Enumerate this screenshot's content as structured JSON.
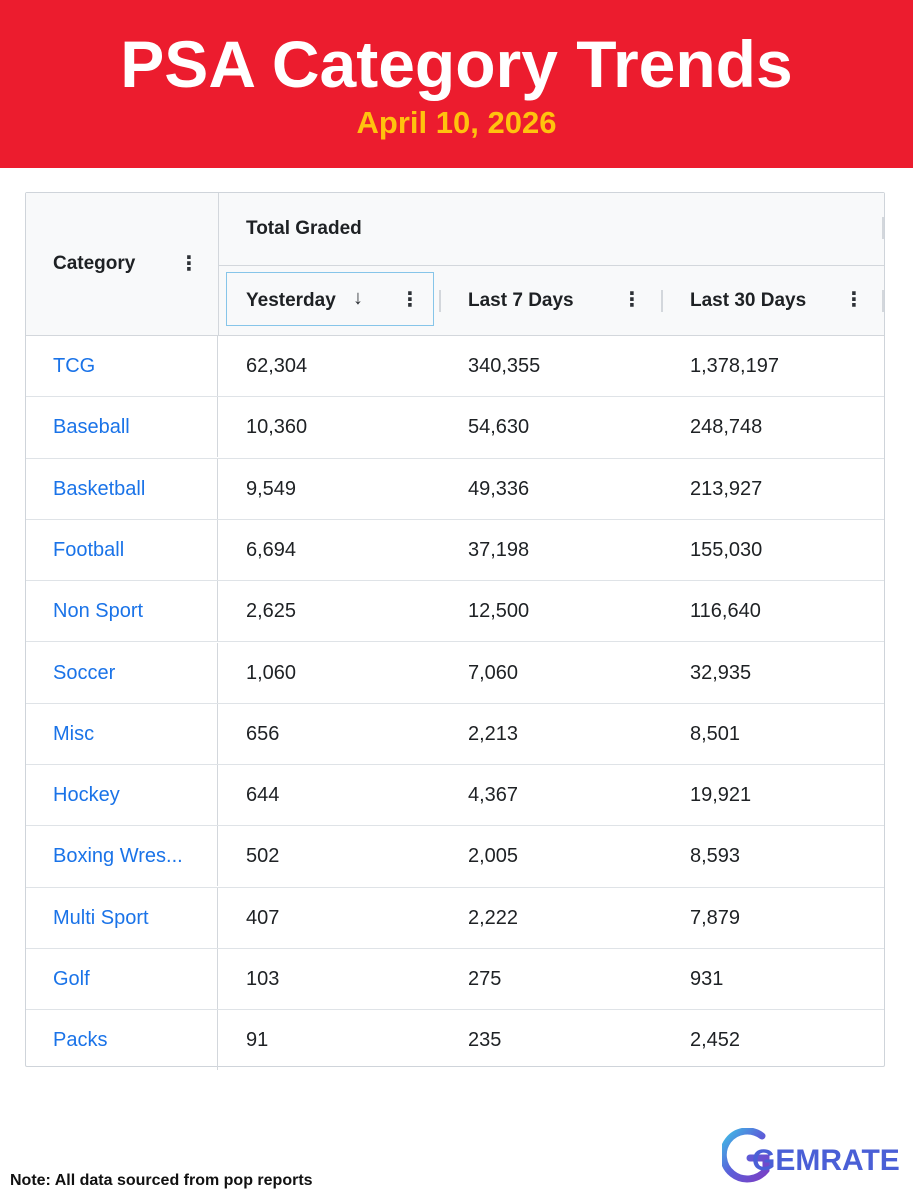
{
  "banner": {
    "title": "PSA Category Trends",
    "date": "April 10, 2026",
    "bg_color": "#ec1c2e",
    "date_color": "#ffc20e"
  },
  "table": {
    "category_header": "Category",
    "group_header": "Total Graded",
    "columns": [
      "Yesterday",
      "Last 7 Days",
      "Last 30 Days"
    ],
    "sorted_column": "Yesterday",
    "sort_direction": "descending",
    "link_color": "#1a73e8",
    "rows": [
      {
        "category": "TCG",
        "yesterday": "62,304",
        "last7": "340,355",
        "last30": "1,378,197"
      },
      {
        "category": "Baseball",
        "yesterday": "10,360",
        "last7": "54,630",
        "last30": "248,748"
      },
      {
        "category": "Basketball",
        "yesterday": "9,549",
        "last7": "49,336",
        "last30": "213,927"
      },
      {
        "category": "Football",
        "yesterday": "6,694",
        "last7": "37,198",
        "last30": "155,030"
      },
      {
        "category": "Non Sport",
        "yesterday": "2,625",
        "last7": "12,500",
        "last30": "116,640"
      },
      {
        "category": "Soccer",
        "yesterday": "1,060",
        "last7": "7,060",
        "last30": "32,935"
      },
      {
        "category": "Misc",
        "yesterday": "656",
        "last7": "2,213",
        "last30": "8,501"
      },
      {
        "category": "Hockey",
        "yesterday": "644",
        "last7": "4,367",
        "last30": "19,921"
      },
      {
        "category": "Boxing Wres...",
        "yesterday": "502",
        "last7": "2,005",
        "last30": "8,593"
      },
      {
        "category": "Multi Sport",
        "yesterday": "407",
        "last7": "2,222",
        "last30": "7,879"
      },
      {
        "category": "Golf",
        "yesterday": "103",
        "last7": "275",
        "last30": "931"
      },
      {
        "category": "Packs",
        "yesterday": "91",
        "last7": "235",
        "last30": "2,452"
      }
    ]
  },
  "footer": {
    "note": "Note: All data sourced from pop reports",
    "logo_text": "GEMRATE",
    "logo_color": "#4a5fd6"
  }
}
